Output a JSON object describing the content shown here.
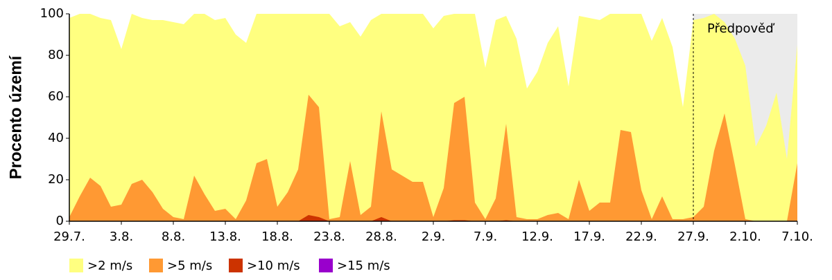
{
  "chart_data": {
    "type": "area",
    "ylabel": "Procento území",
    "categories": [
      "29.7.",
      null,
      null,
      null,
      null,
      "3.8.",
      null,
      null,
      null,
      null,
      "8.8.",
      null,
      null,
      null,
      null,
      "13.8.",
      null,
      null,
      null,
      null,
      "18.8.",
      null,
      null,
      null,
      null,
      "23.8.",
      null,
      null,
      null,
      null,
      "28.8.",
      null,
      null,
      null,
      null,
      "2.9.",
      null,
      null,
      null,
      null,
      "7.9.",
      null,
      null,
      null,
      null,
      "12.9.",
      null,
      null,
      null,
      null,
      "17.9.",
      null,
      null,
      null,
      null,
      "22.9.",
      null,
      null,
      null,
      null,
      "27.9.",
      null,
      null,
      null,
      null,
      "2.10.",
      null,
      null,
      null,
      null,
      "7.10."
    ],
    "series": [
      {
        "name": ">2 m/s",
        "color": "#ffff80",
        "values": [
          98,
          100,
          100,
          98,
          97,
          83,
          100,
          98,
          97,
          97,
          96,
          95,
          100,
          100,
          97,
          98,
          90,
          86,
          100,
          100,
          100,
          100,
          100,
          100,
          100,
          100,
          94,
          96,
          89,
          97,
          100,
          100,
          100,
          100,
          100,
          93,
          99,
          100,
          100,
          100,
          74,
          97,
          99,
          88,
          64,
          72,
          86,
          94,
          65,
          99,
          98,
          97,
          100,
          100,
          100,
          100,
          87,
          98,
          84,
          55,
          97,
          98,
          100,
          96,
          88,
          75,
          36,
          46,
          62,
          30,
          85
        ]
      },
      {
        "name": ">5 m/s",
        "color": "#ff9933",
        "values": [
          2,
          12,
          21,
          17,
          7,
          8,
          18,
          20,
          14,
          6,
          2,
          1,
          22,
          13,
          5,
          6,
          1,
          10,
          28,
          30,
          7,
          14,
          25,
          61,
          55,
          1,
          2,
          29,
          3,
          7,
          53,
          25,
          22,
          19,
          19,
          2,
          16,
          57,
          60,
          9,
          1,
          11,
          47,
          2,
          1,
          1,
          3,
          4,
          1,
          20,
          5,
          9,
          9,
          44,
          43,
          15,
          1,
          12,
          1,
          1,
          2,
          7,
          34,
          52,
          27,
          1,
          0,
          0,
          0,
          0,
          28
        ]
      },
      {
        "name": ">10 m/s",
        "color": "#cc3300",
        "values": [
          0,
          0,
          0,
          0,
          0,
          0,
          0,
          0,
          0,
          0,
          0,
          0,
          0,
          0,
          0,
          0,
          0,
          0,
          0,
          0,
          0,
          0,
          0,
          3,
          2,
          0,
          0,
          0,
          0,
          0,
          2,
          0,
          0,
          0,
          0,
          0,
          0,
          0.5,
          0.5,
          0,
          0,
          0,
          0.5,
          0,
          0,
          0,
          0,
          0,
          0,
          0,
          0,
          0,
          0,
          0,
          0,
          0,
          0,
          0,
          0,
          0,
          0,
          0,
          0,
          0,
          0,
          0,
          0,
          0,
          0,
          0,
          0
        ]
      },
      {
        "name": ">15 m/s",
        "color": "#9900cc",
        "values": [
          0,
          0,
          0,
          0,
          0,
          0,
          0,
          0,
          0,
          0,
          0,
          0,
          0,
          0,
          0,
          0,
          0,
          0,
          0,
          0,
          0,
          0,
          0,
          0,
          0,
          0,
          0,
          0,
          0,
          0,
          0,
          0,
          0,
          0,
          0,
          0,
          0,
          0,
          0,
          0,
          0,
          0,
          0,
          0,
          0,
          0,
          0,
          0,
          0,
          0,
          0,
          0,
          0,
          0,
          0,
          0,
          0,
          0,
          0,
          0,
          0,
          0,
          0,
          0,
          0,
          0,
          0,
          0,
          0,
          0,
          0
        ]
      }
    ],
    "forecast": {
      "label": "Předpověď",
      "from": 60,
      "color": "#ebebeb"
    },
    "ylim": [
      0,
      100
    ],
    "yticks": [
      0,
      20,
      40,
      60,
      80,
      100
    ]
  }
}
